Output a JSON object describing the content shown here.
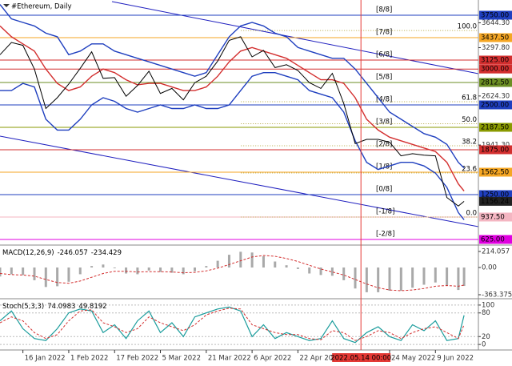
{
  "chart_data": [
    {
      "type": "line",
      "title": "#Ethereum, Daily",
      "x": [
        "2022-01-08",
        "2022-01-12",
        "2022-01-16",
        "2022-01-20",
        "2022-01-24",
        "2022-01-28",
        "2022-02-01",
        "2022-02-05",
        "2022-02-09",
        "2022-02-13",
        "2022-02-17",
        "2022-02-21",
        "2022-02-25",
        "2022-03-01",
        "2022-03-05",
        "2022-03-09",
        "2022-03-13",
        "2022-03-17",
        "2022-03-21",
        "2022-03-25",
        "2022-03-29",
        "2022-04-02",
        "2022-04-06",
        "2022-04-10",
        "2022-04-14",
        "2022-04-18",
        "2022-04-22",
        "2022-04-26",
        "2022-04-30",
        "2022-05-04",
        "2022-05-08",
        "2022-05-12",
        "2022-05-16",
        "2022-05-20",
        "2022-05-24",
        "2022-05-28",
        "2022-06-01",
        "2022-06-05",
        "2022-06-09",
        "2022-06-13",
        "2022-06-17",
        "2022-06-19"
      ],
      "series": [
        {
          "color": "#1f3fbf",
          "values": [
            3900,
            3700,
            3650,
            3600,
            3500,
            3450,
            3200,
            3250,
            3350,
            3350,
            3250,
            3200,
            3150,
            3100,
            3050,
            3000,
            2950,
            2900,
            2950,
            3200,
            3450,
            3600,
            3650,
            3600,
            3500,
            3450,
            3300,
            3250,
            3200,
            3150,
            3150,
            3000,
            2800,
            2600,
            2400,
            2300,
            2200,
            2100,
            2050,
            1950,
            1700,
            1620
          ]
        },
        {
          "color": "#1f3fbf",
          "values": [
            2700,
            2700,
            2800,
            2750,
            2300,
            2150,
            2150,
            2300,
            2500,
            2600,
            2550,
            2450,
            2400,
            2450,
            2500,
            2450,
            2450,
            2500,
            2450,
            2450,
            2500,
            2700,
            2900,
            2950,
            2950,
            2900,
            2850,
            2700,
            2650,
            2600,
            2400,
            2000,
            1700,
            1600,
            1650,
            1700,
            1700,
            1650,
            1550,
            1350,
            1000,
            900
          ]
        },
        {
          "color": "#d32f2f",
          "values": [
            3600,
            3450,
            3350,
            3250,
            3000,
            2800,
            2700,
            2750,
            2900,
            3000,
            2950,
            2850,
            2780,
            2800,
            2800,
            2750,
            2700,
            2700,
            2750,
            2900,
            3100,
            3250,
            3300,
            3250,
            3200,
            3150,
            3050,
            2950,
            2850,
            2850,
            2800,
            2600,
            2300,
            2150,
            2050,
            2000,
            1950,
            1900,
            1850,
            1700,
            1400,
            1300
          ]
        },
        {
          "color": "#000000",
          "values": [
            3200,
            3370,
            3330,
            3000,
            2450,
            2600,
            2790,
            3010,
            3240,
            2870,
            2880,
            2620,
            2770,
            2970,
            2660,
            2730,
            2570,
            2810,
            2900,
            3110,
            3400,
            3450,
            3170,
            3260,
            3020,
            3060,
            2980,
            2810,
            2730,
            2940,
            2520,
            1960,
            2020,
            2020,
            1980,
            1790,
            1820,
            1800,
            1790,
            1210,
            1090,
            1156.24
          ]
        }
      ],
      "last_label": "1156.24",
      "xlim": [
        "2022-01-08",
        "2022-06-24"
      ],
      "xticks": [
        {
          "value": "2022-01-16",
          "label": "16 Jan 2022"
        },
        {
          "value": "2022-02-01",
          "label": "1 Feb 2022"
        },
        {
          "value": "2022-02-17",
          "label": "17 Feb 2022"
        },
        {
          "value": "2022-03-05",
          "label": "5 Mar 2022"
        },
        {
          "value": "2022-03-21",
          "label": "21 Mar 2022"
        },
        {
          "value": "2022-04-06",
          "label": "6 Apr 2022"
        },
        {
          "value": "2022-04-22",
          "label": "22 Apr 2022"
        },
        {
          "value": "2022-05-24",
          "label": "24 May 2022"
        },
        {
          "value": "2022-06-09",
          "label": "9 Jun 2022"
        }
      ],
      "marker": {
        "value": "2022-05-14",
        "label": "2022.05.14 00:00",
        "color": "#e53935"
      },
      "ylim": [
        558,
        3962
      ],
      "yticks": [
        {
          "value": 3644.3,
          "label": "3644.30"
        },
        {
          "value": 3297.8,
          "label": "3297.80"
        },
        {
          "value": 2624.3,
          "label": "2624.30"
        },
        {
          "value": 1941.3,
          "label": "1941.30"
        }
      ],
      "levels": [
        {
          "value": 3750,
          "label": "3750.00",
          "color": "#1f3fbf",
          "murrey": "[8/8]"
        },
        {
          "value": 3437.5,
          "label": "3437.50",
          "color": "#f5a623",
          "murrey": "[7/8]"
        },
        {
          "value": 3125,
          "label": "3125.00",
          "color": "#d32f2f",
          "murrey": "[6/8]"
        },
        {
          "value": 3000,
          "label": "3000.00",
          "color": "#d32f2f"
        },
        {
          "value": 2812.5,
          "label": "2812.50",
          "color": "#6b8e23",
          "murrey": "[5/8]"
        },
        {
          "value": 2500,
          "label": "2500.00",
          "color": "#1f3fbf",
          "murrey": "[4/8]"
        },
        {
          "value": 2187.5,
          "label": "2187.50",
          "color": "#8a9a00",
          "murrey": "[3/8]"
        },
        {
          "value": 1875,
          "label": "1875.00",
          "color": "#d32f2f",
          "murrey": "[2/8]"
        },
        {
          "value": 1562.5,
          "label": "1562.50",
          "color": "#f5a623",
          "murrey": "[1/8]"
        },
        {
          "value": 1250,
          "label": "1250.00",
          "color": "#1f3fbf",
          "murrey": "[0/8]"
        },
        {
          "value": 937.5,
          "label": "937.50",
          "color": "#f4b6c2",
          "murrey": "[-1/8]"
        },
        {
          "value": 625,
          "label": "625.00",
          "color": "#e000e0",
          "murrey": "[-2/8]"
        }
      ],
      "fib": {
        "low": 937.5,
        "high": 3537,
        "color": "#b5a642",
        "levels": [
          {
            "value": 100,
            "label": "100.0"
          },
          {
            "value": 61.8,
            "label": "61.8"
          },
          {
            "value": 50,
            "label": "50.0"
          },
          {
            "value": 38.2,
            "label": "38.2"
          },
          {
            "value": 23.6,
            "label": "23.6"
          },
          {
            "value": 0,
            "label": "0.0"
          }
        ]
      }
    },
    {
      "type": "macd",
      "title": "MACD(12,26,9)",
      "histogram": [
        -120,
        -90,
        -100,
        -170,
        -260,
        -250,
        -190,
        -90,
        20,
        40,
        -10,
        -80,
        -90,
        -40,
        -60,
        -70,
        -90,
        -50,
        20,
        90,
        170,
        210,
        200,
        150,
        80,
        30,
        -20,
        -80,
        -100,
        -110,
        -170,
        -280,
        -330,
        -330,
        -310,
        -310,
        -270,
        -230,
        -200,
        -240,
        -300,
        -246.057
      ],
      "signal": [
        -80,
        -95,
        -100,
        -115,
        -160,
        -200,
        -210,
        -180,
        -130,
        -80,
        -50,
        -50,
        -60,
        -55,
        -55,
        -60,
        -70,
        -65,
        -45,
        -10,
        40,
        90,
        140,
        160,
        150,
        120,
        80,
        30,
        -20,
        -60,
        -100,
        -160,
        -220,
        -270,
        -300,
        -310,
        -300,
        -280,
        -250,
        -240,
        -250,
        -234.429
      ],
      "hist_color": "#a9a9a9",
      "signal_color": "#d32f2f",
      "ylim": [
        -406,
        278
      ],
      "yticks": [
        214.057,
        {
          "value": 0,
          "label": "0.00"
        },
        -363.375
      ]
    },
    {
      "type": "stoch",
      "title": "Stoch(5,3,3)",
      "main": [
        60,
        85,
        40,
        15,
        10,
        40,
        80,
        90,
        85,
        30,
        50,
        15,
        60,
        85,
        30,
        55,
        20,
        70,
        80,
        90,
        95,
        85,
        20,
        50,
        15,
        30,
        20,
        10,
        15,
        60,
        15,
        5,
        30,
        45,
        20,
        10,
        50,
        35,
        60,
        10,
        15,
        74.0983
      ],
      "signal": [
        55,
        70,
        60,
        30,
        15,
        25,
        60,
        85,
        88,
        55,
        45,
        30,
        40,
        70,
        55,
        45,
        35,
        50,
        75,
        85,
        92,
        90,
        50,
        40,
        30,
        25,
        25,
        15,
        12,
        35,
        30,
        10,
        20,
        35,
        30,
        15,
        30,
        40,
        45,
        30,
        15,
        49.8192
      ],
      "main_color": "#1a9c9c",
      "signal_color": "#d32f2f",
      "ylim": [
        -14,
        112
      ],
      "yticks": [
        100,
        80,
        20,
        0
      ]
    }
  ]
}
